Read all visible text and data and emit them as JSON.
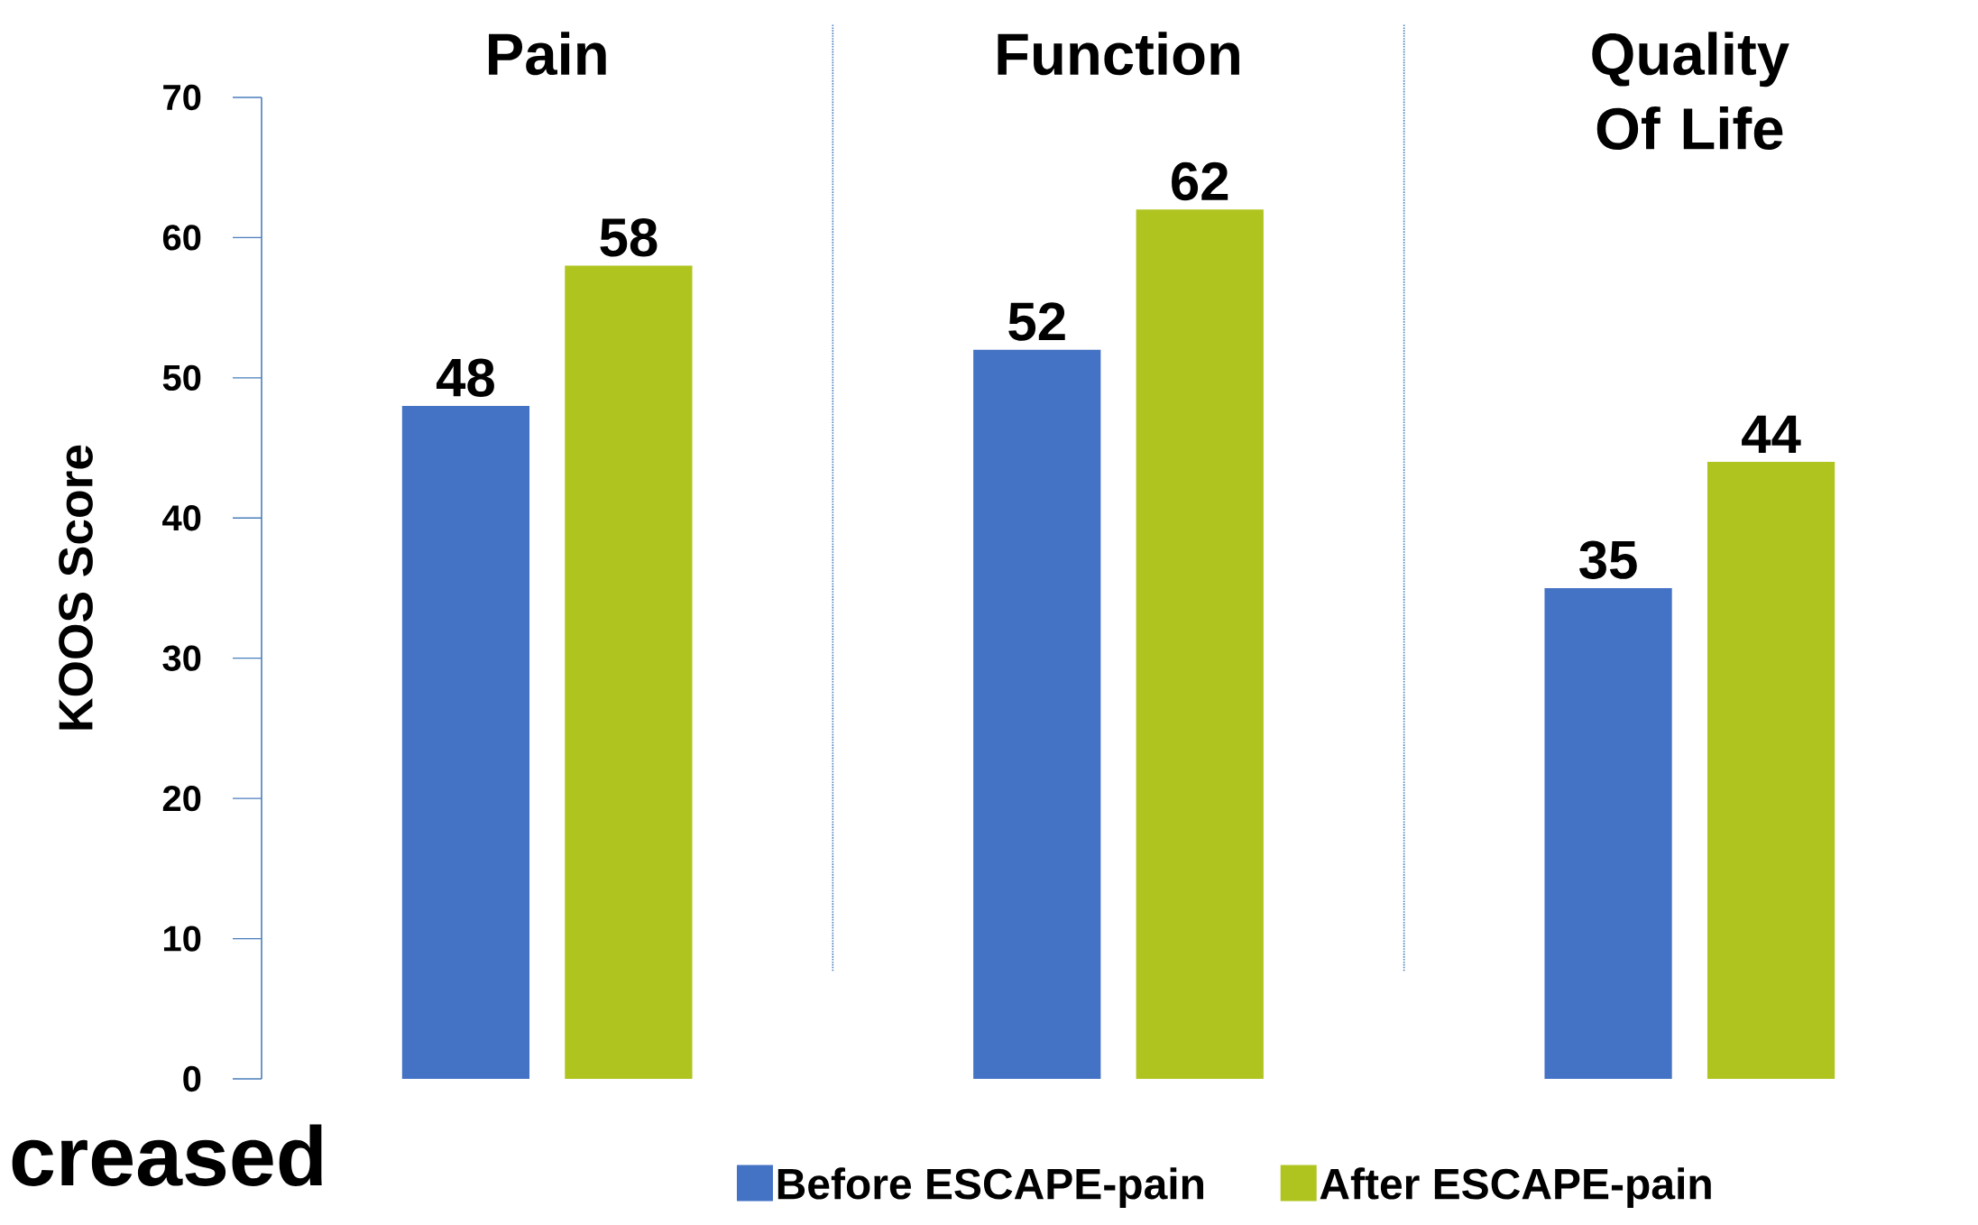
{
  "chart_data": {
    "type": "bar",
    "ylabel": "KOOS Score",
    "categories": [
      "Pain",
      "Function",
      "Quality Of Life"
    ],
    "series": [
      {
        "name": "Before ESCAPE-pain",
        "color": "#4472c4",
        "values": [
          48,
          52,
          35
        ]
      },
      {
        "name": "After ESCAPE-pain",
        "color": "#b0c41f",
        "values": [
          58,
          62,
          44
        ]
      }
    ],
    "ylim": [
      0,
      70
    ],
    "yticks": [
      0,
      10,
      20,
      30,
      40,
      50,
      60,
      70
    ],
    "data_labels": true,
    "legend": "bottom",
    "grid": false,
    "annotations": [
      "creased"
    ]
  }
}
